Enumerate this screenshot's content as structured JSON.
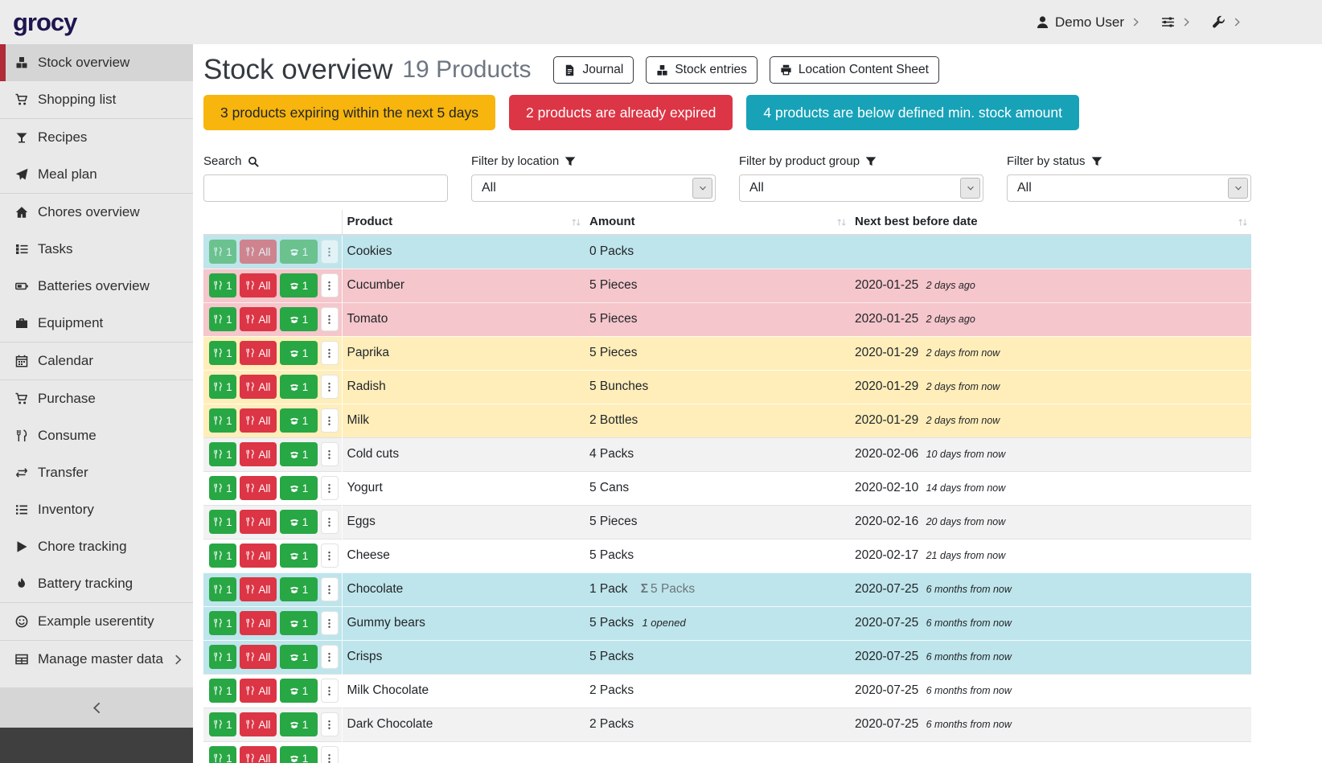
{
  "colors": {
    "brand": "#1d164f",
    "active_item_border": "#b02a37",
    "success": "#28a745",
    "danger": "#dc3545",
    "warning": "#ffc107",
    "info": "#17a2b8"
  },
  "navbar": {
    "logo": "grocy",
    "user_menu": {
      "icon": "user",
      "label": "Demo User",
      "chevron_icon": "chevron-right"
    },
    "settings_menu": {
      "icon": "sliders",
      "chevron_icon": "chevron-right"
    },
    "admin_menu": {
      "icon": "wrench",
      "chevron_icon": "chevron-right"
    }
  },
  "sidebar": {
    "items": [
      {
        "label": "Stock overview",
        "icon": "boxes",
        "active": true
      },
      {
        "label": "Shopping list",
        "icon": "cart",
        "divider_after": true
      },
      {
        "label": "Recipes",
        "icon": "cocktail"
      },
      {
        "label": "Meal plan",
        "icon": "paper-plane",
        "divider_after": true
      },
      {
        "label": "Chores overview",
        "icon": "home"
      },
      {
        "label": "Tasks",
        "icon": "tasks"
      },
      {
        "label": "Batteries overview",
        "icon": "battery"
      },
      {
        "label": "Equipment",
        "icon": "toolbox",
        "divider_after": true
      },
      {
        "label": "Calendar",
        "icon": "calendar",
        "divider_after": true
      },
      {
        "label": "Purchase",
        "icon": "cart"
      },
      {
        "label": "Consume",
        "icon": "utensils"
      },
      {
        "label": "Transfer",
        "icon": "exchange"
      },
      {
        "label": "Inventory",
        "icon": "list"
      },
      {
        "label": "Chore tracking",
        "icon": "play"
      },
      {
        "label": "Battery tracking",
        "icon": "fire",
        "divider_after": true
      },
      {
        "label": "Example userentity",
        "icon": "smiley",
        "divider_after": true
      },
      {
        "label": "Manage master data",
        "icon": "table",
        "trailing_icon": "chevron-right"
      }
    ],
    "collapse_icon": "chevron-left"
  },
  "page": {
    "title": "Stock overview",
    "subtitle": "19 Products",
    "buttons": [
      {
        "label": "Journal",
        "icon": "file"
      },
      {
        "label": "Stock entries",
        "icon": "boxes"
      },
      {
        "label": "Location Content Sheet",
        "icon": "print"
      }
    ]
  },
  "alerts": [
    {
      "key": "expiring-soon",
      "text": "3 products expiring within the next 5 days",
      "bg": "#f7b50d",
      "fg": "#212529"
    },
    {
      "key": "expired",
      "text": "2 products are already expired",
      "bg": "#dc3545",
      "fg": "#ffffff"
    },
    {
      "key": "below-min-stock",
      "text": "4 products are below defined min. stock amount",
      "bg": "#17a2b8",
      "fg": "#ffffff"
    }
  ],
  "filters": {
    "search": {
      "label": "Search",
      "icon": "search",
      "value": ""
    },
    "selects": [
      {
        "label": "Filter by location",
        "icon": "filter",
        "value": "All"
      },
      {
        "label": "Filter by product group",
        "icon": "filter",
        "value": "All"
      },
      {
        "label": "Filter by status",
        "icon": "filter",
        "value": "All"
      }
    ],
    "select_chevron_icon": "chevron-down"
  },
  "table": {
    "columns": [
      {
        "label": "Product"
      },
      {
        "label": "Amount"
      },
      {
        "label": "Next best before date"
      }
    ],
    "sort_icon": "sort",
    "sum_icon_char": "Σ",
    "actions": {
      "consume_one": {
        "label": "1",
        "icon": "utensils",
        "color": "#28a745"
      },
      "consume_all": {
        "label": "All",
        "icon": "utensils",
        "color": "#dc3545"
      },
      "open_one": {
        "label": "1",
        "icon": "box-open",
        "color": "#28a745"
      },
      "more": {
        "icon": "ellipsis-v"
      }
    },
    "rows": [
      {
        "product": "Cookies",
        "amount": "0 Packs",
        "date": "",
        "relative": "",
        "row_state": "info",
        "disabled": true
      },
      {
        "product": "Cucumber",
        "amount": "5 Pieces",
        "date": "2020-01-25",
        "relative": "2 days ago",
        "row_state": "danger"
      },
      {
        "product": "Tomato",
        "amount": "5 Pieces",
        "date": "2020-01-25",
        "relative": "2 days ago",
        "row_state": "danger"
      },
      {
        "product": "Paprika",
        "amount": "5 Pieces",
        "date": "2020-01-29",
        "relative": "2 days from now",
        "row_state": "warning"
      },
      {
        "product": "Radish",
        "amount": "5 Bunches",
        "date": "2020-01-29",
        "relative": "2 days from now",
        "row_state": "warning"
      },
      {
        "product": "Milk",
        "amount": "2 Bottles",
        "date": "2020-01-29",
        "relative": "2 days from now",
        "row_state": "warning"
      },
      {
        "product": "Cold cuts",
        "amount": "4 Packs",
        "date": "2020-02-06",
        "relative": "10 days from now",
        "row_state": "stripe"
      },
      {
        "product": "Yogurt",
        "amount": "5 Cans",
        "date": "2020-02-10",
        "relative": "14 days from now",
        "row_state": "plain"
      },
      {
        "product": "Eggs",
        "amount": "5 Pieces",
        "date": "2020-02-16",
        "relative": "20 days from now",
        "row_state": "stripe"
      },
      {
        "product": "Cheese",
        "amount": "5 Packs",
        "date": "2020-02-17",
        "relative": "21 days from now",
        "row_state": "plain"
      },
      {
        "product": "Chocolate",
        "amount": "1 Pack",
        "amount_sum": "5 Packs",
        "date": "2020-07-25",
        "relative": "6 months from now",
        "row_state": "info"
      },
      {
        "product": "Gummy bears",
        "amount": "5 Packs",
        "amount_note": "1 opened",
        "date": "2020-07-25",
        "relative": "6 months from now",
        "row_state": "info"
      },
      {
        "product": "Crisps",
        "amount": "5 Packs",
        "date": "2020-07-25",
        "relative": "6 months from now",
        "row_state": "info"
      },
      {
        "product": "Milk Chocolate",
        "amount": "2 Packs",
        "date": "2020-07-25",
        "relative": "6 months from now",
        "row_state": "plain"
      },
      {
        "product": "Dark Chocolate",
        "amount": "2 Packs",
        "date": "2020-07-25",
        "relative": "6 months from now",
        "row_state": "stripe"
      },
      {
        "product": "",
        "amount": "",
        "date": "",
        "relative": "",
        "row_state": "plain",
        "partial": true
      }
    ]
  }
}
